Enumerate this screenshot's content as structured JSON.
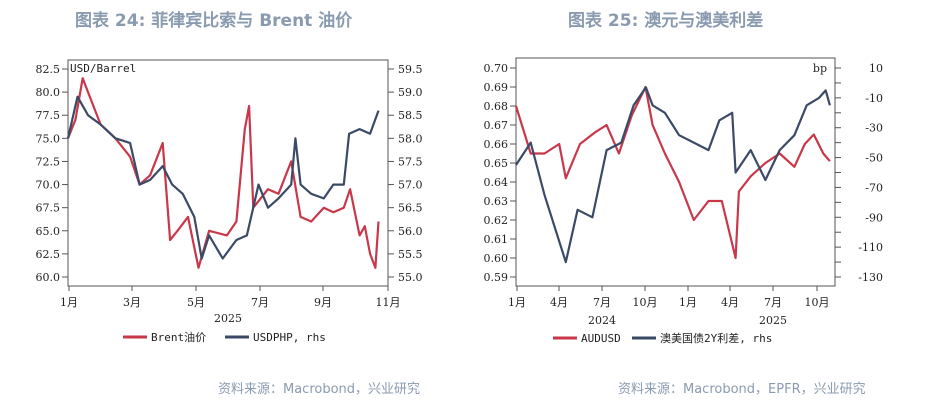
{
  "colors": {
    "red": "#c8384a",
    "navy": "#3b4a66",
    "title": "#8a9bb0"
  },
  "chart_data": [
    {
      "type": "line",
      "title": "图表 24: 菲律宾比索与 Brent 油价",
      "source": "资料来源：Macrobond，兴业研究",
      "unit_left": "USD/Barrel",
      "xlabel": "2025",
      "x_ticks": [
        "1月",
        "3月",
        "5月",
        "7月",
        "9月",
        "11月"
      ],
      "ylim": [
        60,
        82.5
      ],
      "y2lim": [
        55,
        59.5
      ],
      "y_ticks": [
        "60.0",
        "62.5",
        "65.0",
        "67.5",
        "70.0",
        "72.5",
        "75.0",
        "77.5",
        "80.0",
        "82.5"
      ],
      "y2_ticks": [
        "55.0",
        "55.5",
        "56.0",
        "56.5",
        "57.0",
        "57.5",
        "58.0",
        "58.5",
        "59.0",
        "59.5"
      ],
      "xrange": [
        "2025-01-01",
        "2025-11-01"
      ],
      "series": [
        {
          "name": "Brent油价",
          "axis": "left",
          "color": "#c8384a",
          "points": [
            [
              "2025-01-01",
              75
            ],
            [
              "2025-01-08",
              77
            ],
            [
              "2025-01-15",
              81.5
            ],
            [
              "2025-01-20",
              80
            ],
            [
              "2025-02-01",
              76.5
            ],
            [
              "2025-02-15",
              75
            ],
            [
              "2025-03-01",
              73
            ],
            [
              "2025-03-10",
              70
            ],
            [
              "2025-03-20",
              71
            ],
            [
              "2025-04-01",
              74.5
            ],
            [
              "2025-04-08",
              64
            ],
            [
              "2025-04-15",
              65
            ],
            [
              "2025-04-25",
              66.5
            ],
            [
              "2025-05-05",
              61
            ],
            [
              "2025-05-15",
              65
            ],
            [
              "2025-06-01",
              64.5
            ],
            [
              "2025-06-10",
              66
            ],
            [
              "2025-06-18",
              76
            ],
            [
              "2025-06-22",
              78.5
            ],
            [
              "2025-06-26",
              67.5
            ],
            [
              "2025-07-10",
              69.5
            ],
            [
              "2025-07-20",
              69
            ],
            [
              "2025-08-01",
              72.5
            ],
            [
              "2025-08-10",
              66.5
            ],
            [
              "2025-08-20",
              66
            ],
            [
              "2025-09-01",
              67.5
            ],
            [
              "2025-09-10",
              67
            ],
            [
              "2025-09-20",
              67.5
            ],
            [
              "2025-09-26",
              69.5
            ],
            [
              "2025-10-05",
              64.5
            ],
            [
              "2025-10-10",
              65.5
            ],
            [
              "2025-10-15",
              62.5
            ],
            [
              "2025-10-20",
              61
            ],
            [
              "2025-10-23",
              66
            ]
          ]
        },
        {
          "name": "USDPHP, rhs",
          "axis": "right",
          "color": "#3b4a66",
          "points": [
            [
              "2025-01-01",
              58
            ],
            [
              "2025-01-10",
              58.9
            ],
            [
              "2025-01-20",
              58.5
            ],
            [
              "2025-02-01",
              58.3
            ],
            [
              "2025-02-15",
              58
            ],
            [
              "2025-03-01",
              57.9
            ],
            [
              "2025-03-10",
              57
            ],
            [
              "2025-03-20",
              57.1
            ],
            [
              "2025-04-01",
              57.4
            ],
            [
              "2025-04-10",
              57
            ],
            [
              "2025-04-20",
              56.8
            ],
            [
              "2025-05-01",
              56.3
            ],
            [
              "2025-05-08",
              55.4
            ],
            [
              "2025-05-15",
              55.9
            ],
            [
              "2025-05-28",
              55.4
            ],
            [
              "2025-06-10",
              55.8
            ],
            [
              "2025-06-20",
              55.9
            ],
            [
              "2025-07-01",
              57
            ],
            [
              "2025-07-10",
              56.5
            ],
            [
              "2025-07-20",
              56.7
            ],
            [
              "2025-08-01",
              57
            ],
            [
              "2025-08-05",
              58
            ],
            [
              "2025-08-10",
              57
            ],
            [
              "2025-08-20",
              56.8
            ],
            [
              "2025-09-01",
              56.7
            ],
            [
              "2025-09-10",
              57
            ],
            [
              "2025-09-20",
              57
            ],
            [
              "2025-09-25",
              58.1
            ],
            [
              "2025-10-05",
              58.2
            ],
            [
              "2025-10-15",
              58.1
            ],
            [
              "2025-10-23",
              58.6
            ]
          ]
        }
      ]
    },
    {
      "type": "line",
      "title": "图表 25: 澳元与澳美利差",
      "source": "资料来源：Macrobond，EPFR，兴业研究",
      "unit_right": "bp",
      "x_ticks": [
        "1月",
        "4月",
        "7月",
        "10月",
        "1月",
        "4月",
        "7月",
        "10月"
      ],
      "x_years": [
        "2024",
        "2025"
      ],
      "ylim": [
        0.59,
        0.7
      ],
      "y2lim": [
        -130,
        10
      ],
      "y_ticks": [
        "0.59",
        "0.60",
        "0.61",
        "0.62",
        "0.63",
        "0.64",
        "0.65",
        "0.66",
        "0.67",
        "0.68",
        "0.69",
        "0.70"
      ],
      "y2_ticks": [
        "-130",
        "-110",
        "-90",
        "-70",
        "-50",
        "-30",
        "-10",
        "10"
      ],
      "xrange": [
        "2024-01-01",
        "2025-11-10"
      ],
      "series": [
        {
          "name": "AUDUSD",
          "axis": "left",
          "color": "#c8384a",
          "points": [
            [
              "2024-01-01",
              0.68
            ],
            [
              "2024-02-01",
              0.655
            ],
            [
              "2024-03-01",
              0.655
            ],
            [
              "2024-04-01",
              0.66
            ],
            [
              "2024-04-15",
              0.642
            ],
            [
              "2024-05-15",
              0.66
            ],
            [
              "2024-06-15",
              0.666
            ],
            [
              "2024-07-10",
              0.67
            ],
            [
              "2024-08-05",
              0.655
            ],
            [
              "2024-09-01",
              0.675
            ],
            [
              "2024-09-30",
              0.69
            ],
            [
              "2024-10-15",
              0.67
            ],
            [
              "2024-11-10",
              0.655
            ],
            [
              "2024-12-10",
              0.64
            ],
            [
              "2025-01-10",
              0.62
            ],
            [
              "2025-02-10",
              0.63
            ],
            [
              "2025-03-10",
              0.63
            ],
            [
              "2025-04-08",
              0.6
            ],
            [
              "2025-04-15",
              0.635
            ],
            [
              "2025-05-10",
              0.643
            ],
            [
              "2025-06-10",
              0.65
            ],
            [
              "2025-07-10",
              0.655
            ],
            [
              "2025-08-10",
              0.648
            ],
            [
              "2025-09-01",
              0.66
            ],
            [
              "2025-09-20",
              0.665
            ],
            [
              "2025-10-10",
              0.655
            ],
            [
              "2025-10-24",
              0.651
            ]
          ]
        },
        {
          "name": "澳美国债2Y利差, rhs",
          "axis": "right",
          "color": "#3b4a66",
          "points": [
            [
              "2024-01-01",
              -55
            ],
            [
              "2024-02-01",
              -40
            ],
            [
              "2024-03-01",
              -75
            ],
            [
              "2024-04-15",
              -120
            ],
            [
              "2024-05-10",
              -85
            ],
            [
              "2024-06-10",
              -90
            ],
            [
              "2024-07-10",
              -45
            ],
            [
              "2024-08-10",
              -40
            ],
            [
              "2024-09-05",
              -15
            ],
            [
              "2024-10-01",
              -3
            ],
            [
              "2024-10-15",
              -15
            ],
            [
              "2024-11-10",
              -20
            ],
            [
              "2024-12-10",
              -35
            ],
            [
              "2025-01-10",
              -40
            ],
            [
              "2025-02-10",
              -45
            ],
            [
              "2025-03-05",
              -25
            ],
            [
              "2025-04-01",
              -20
            ],
            [
              "2025-04-08",
              -60
            ],
            [
              "2025-05-10",
              -45
            ],
            [
              "2025-06-10",
              -65
            ],
            [
              "2025-07-10",
              -45
            ],
            [
              "2025-08-10",
              -35
            ],
            [
              "2025-09-05",
              -15
            ],
            [
              "2025-10-01",
              -10
            ],
            [
              "2025-10-15",
              -5
            ],
            [
              "2025-10-24",
              -15
            ]
          ]
        }
      ]
    }
  ]
}
